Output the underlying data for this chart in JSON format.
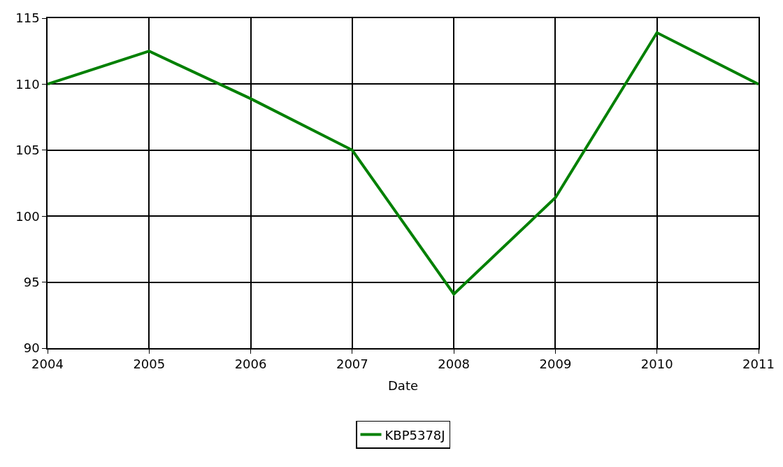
{
  "chart_data": {
    "type": "line",
    "xlabel": "Date",
    "x": [
      2004,
      2005,
      2006,
      2007,
      2008,
      2009,
      2010,
      2011
    ],
    "series": [
      {
        "name": "KBP5378J",
        "color": "#008000",
        "values": [
          110,
          112.5,
          108.9,
          105,
          94.1,
          101.4,
          113.9,
          110
        ]
      }
    ],
    "xlim": [
      2004,
      2011
    ],
    "xticks": [
      2004,
      2005,
      2006,
      2007,
      2008,
      2009,
      2010,
      2011
    ],
    "ylim": [
      90,
      115
    ],
    "yticks": [
      90,
      95,
      100,
      105,
      110,
      115
    ],
    "grid": true,
    "legend": "bottom",
    "marker": "none",
    "line_style": "solid"
  }
}
